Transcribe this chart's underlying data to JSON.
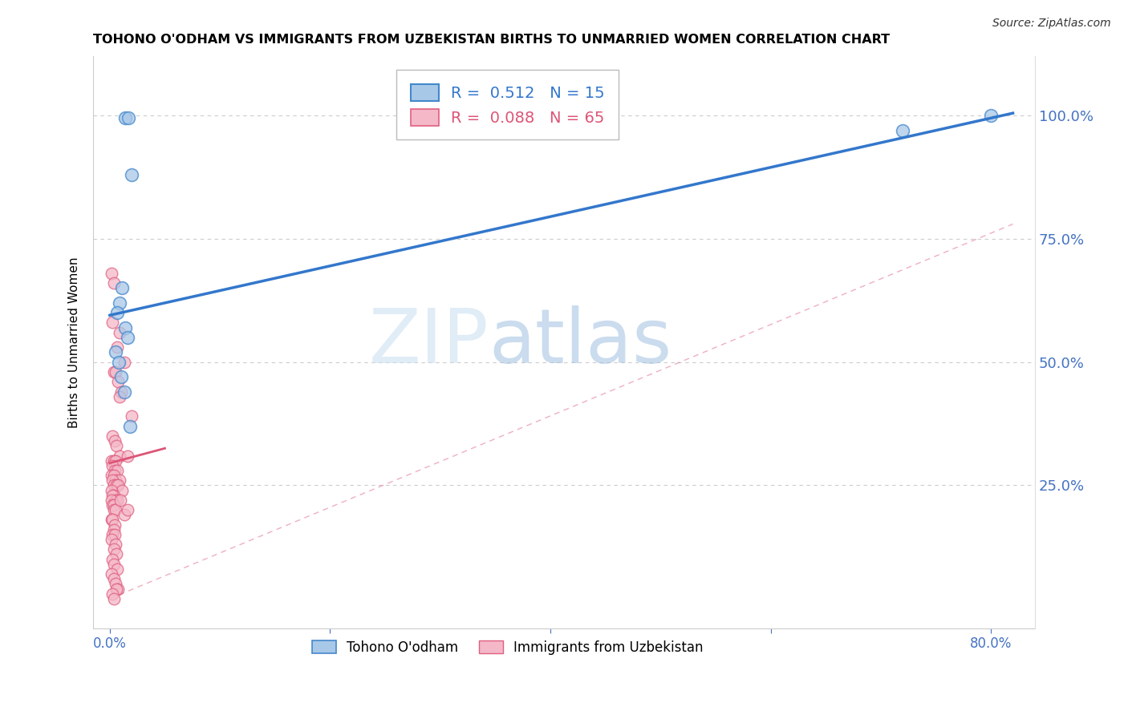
{
  "title": "TOHONO O'ODHAM VS IMMIGRANTS FROM UZBEKISTAN BIRTHS TO UNMARRIED WOMEN CORRELATION CHART",
  "source_text": "Source: ZipAtlas.com",
  "ylabel": "Births to Unmarried Women",
  "xmin": -1.5,
  "xmax": 84.0,
  "ymin": -0.04,
  "ymax": 1.12,
  "blue_R": "0.512",
  "blue_N": "15",
  "pink_R": "0.088",
  "pink_N": "65",
  "blue_color": "#a8c8e8",
  "pink_color": "#f4b8c8",
  "blue_edge_color": "#4488cc",
  "pink_edge_color": "#e06080",
  "blue_line_color": "#3377cc",
  "pink_line_color": "#dd5577",
  "blue_scatter_x": [
    1.4,
    1.7,
    2.0,
    1.1,
    0.9,
    0.7,
    1.4,
    1.6,
    0.5,
    0.8,
    1.0,
    1.3,
    1.8,
    72.0,
    80.0
  ],
  "blue_scatter_y": [
    0.995,
    0.995,
    0.88,
    0.65,
    0.62,
    0.6,
    0.57,
    0.55,
    0.52,
    0.5,
    0.47,
    0.44,
    0.37,
    0.97,
    1.0
  ],
  "pink_scatter_x": [
    0.15,
    0.35,
    0.25,
    0.85,
    0.65,
    1.3,
    0.35,
    0.55,
    0.75,
    1.0,
    0.25,
    0.45,
    0.6,
    0.9,
    1.6,
    0.15,
    0.35,
    0.5,
    0.25,
    0.45,
    0.7,
    0.15,
    0.35,
    0.5,
    0.85,
    0.25,
    0.4,
    0.6,
    0.75,
    1.1,
    0.15,
    0.35,
    0.25,
    0.5,
    0.7,
    0.15,
    0.25,
    0.4,
    0.35,
    0.5,
    0.9,
    0.15,
    0.25,
    0.45,
    0.35,
    0.25,
    0.45,
    0.15,
    0.5,
    0.35,
    0.6,
    0.25,
    0.4,
    0.7,
    0.15,
    0.35,
    0.5,
    1.3,
    1.6,
    0.75,
    0.6,
    0.95,
    2.0,
    0.25,
    0.4
  ],
  "pink_scatter_y": [
    0.68,
    0.66,
    0.58,
    0.56,
    0.53,
    0.5,
    0.48,
    0.48,
    0.46,
    0.44,
    0.35,
    0.34,
    0.33,
    0.31,
    0.31,
    0.3,
    0.3,
    0.3,
    0.29,
    0.28,
    0.28,
    0.27,
    0.27,
    0.26,
    0.26,
    0.26,
    0.25,
    0.25,
    0.25,
    0.24,
    0.24,
    0.23,
    0.23,
    0.22,
    0.22,
    0.22,
    0.21,
    0.21,
    0.2,
    0.2,
    0.43,
    0.18,
    0.18,
    0.17,
    0.16,
    0.15,
    0.15,
    0.14,
    0.13,
    0.12,
    0.11,
    0.1,
    0.09,
    0.08,
    0.07,
    0.06,
    0.05,
    0.19,
    0.2,
    0.04,
    0.04,
    0.22,
    0.39,
    0.03,
    0.02
  ],
  "watermark_zip": "ZIP",
  "watermark_atlas": "atlas",
  "legend_label_blue": "Tohono O'odham",
  "legend_label_pink": "Immigrants from Uzbekistan",
  "blue_line_x0": 0.0,
  "blue_line_y0": 0.595,
  "blue_line_x1": 82.0,
  "blue_line_y1": 1.005,
  "pink_line_x0": 0.0,
  "pink_line_y0": 0.295,
  "pink_line_x1": 5.0,
  "pink_line_y1": 0.325,
  "diag_line_x0": 0.0,
  "diag_line_y0": 0.02,
  "diag_line_x1": 82.0,
  "diag_line_y1": 0.78,
  "title_fontsize": 11.5,
  "axis_color": "#4472c4",
  "grid_color": "#cccccc",
  "xtick_positions": [
    0,
    20,
    40,
    60,
    80
  ],
  "xtick_labels": [
    "0.0%",
    "",
    "",
    "",
    "80.0%"
  ],
  "ytick_positions": [
    0.0,
    0.25,
    0.5,
    0.75,
    1.0
  ],
  "ytick_labels": [
    "",
    "25.0%",
    "50.0%",
    "75.0%",
    "100.0%"
  ]
}
